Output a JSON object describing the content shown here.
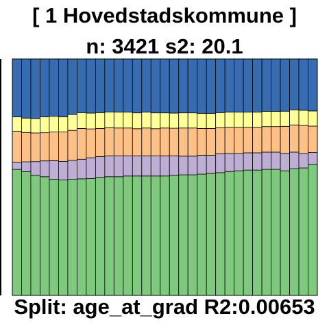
{
  "header": {
    "title": "[ 1 Hovedstadskommune ]",
    "subtitle": "n: 3421 s2: 20.1"
  },
  "footer": {
    "split_text": "Split: age_at_grad R2:0.00653"
  },
  "chart_data": {
    "type": "bar",
    "stacked": true,
    "normalized": true,
    "title": "[ 1 Hovedstadskommune ]",
    "subtitle": "n: 3421 s2: 20.1",
    "xlabel": "Split: age_at_grad R2:0.00653",
    "ylabel": "",
    "ylim": [
      0,
      1
    ],
    "num_bars": 33,
    "series": [
      {
        "name": "",
        "color": "#7fc97f",
        "values": [
          0.533,
          0.523,
          0.508,
          0.502,
          0.491,
          0.488,
          0.491,
          0.493,
          0.494,
          0.499,
          0.502,
          0.502,
          0.505,
          0.505,
          0.505,
          0.505,
          0.505,
          0.508,
          0.51,
          0.51,
          0.513,
          0.516,
          0.519,
          0.524,
          0.527,
          0.53,
          0.53,
          0.533,
          0.533,
          0.527,
          0.536,
          0.539,
          0.555
        ]
      },
      {
        "name": "",
        "color": "#beaed4",
        "values": [
          0.03,
          0.042,
          0.058,
          0.067,
          0.079,
          0.079,
          0.08,
          0.083,
          0.088,
          0.088,
          0.088,
          0.088,
          0.085,
          0.085,
          0.085,
          0.085,
          0.085,
          0.082,
          0.079,
          0.079,
          0.08,
          0.077,
          0.08,
          0.076,
          0.073,
          0.073,
          0.073,
          0.073,
          0.073,
          0.073,
          0.07,
          0.061,
          0.049
        ]
      },
      {
        "name": "",
        "color": "#fdc086",
        "values": [
          0.131,
          0.124,
          0.121,
          0.119,
          0.121,
          0.124,
          0.127,
          0.13,
          0.122,
          0.119,
          0.119,
          0.118,
          0.118,
          0.115,
          0.118,
          0.115,
          0.118,
          0.117,
          0.119,
          0.119,
          0.113,
          0.113,
          0.11,
          0.111,
          0.111,
          0.108,
          0.108,
          0.108,
          0.108,
          0.115,
          0.115,
          0.119,
          0.112
        ]
      },
      {
        "name": "",
        "color": "#ffff99",
        "values": [
          0.061,
          0.061,
          0.061,
          0.067,
          0.067,
          0.064,
          0.067,
          0.067,
          0.067,
          0.067,
          0.067,
          0.067,
          0.067,
          0.067,
          0.067,
          0.067,
          0.064,
          0.064,
          0.064,
          0.064,
          0.064,
          0.064,
          0.064,
          0.064,
          0.064,
          0.064,
          0.064,
          0.064,
          0.064,
          0.064,
          0.064,
          0.064,
          0.064
        ]
      },
      {
        "name": "",
        "color": "#386cb0",
        "values": [
          0.245,
          0.25,
          0.252,
          0.245,
          0.242,
          0.245,
          0.235,
          0.227,
          0.229,
          0.227,
          0.224,
          0.225,
          0.225,
          0.228,
          0.225,
          0.228,
          0.228,
          0.229,
          0.228,
          0.228,
          0.23,
          0.23,
          0.227,
          0.225,
          0.225,
          0.225,
          0.225,
          0.222,
          0.222,
          0.221,
          0.215,
          0.217,
          0.22
        ]
      }
    ]
  }
}
